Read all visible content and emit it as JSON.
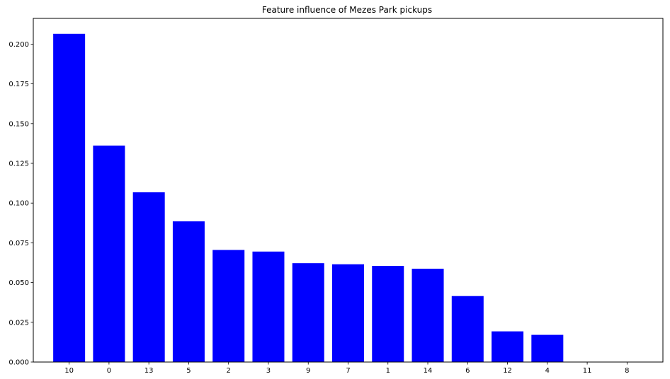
{
  "chart_data": {
    "type": "bar",
    "title": "Feature influence of Mezes Park pickups",
    "xlabel": "",
    "ylabel": "",
    "categories": [
      "10",
      "0",
      "13",
      "5",
      "2",
      "3",
      "9",
      "7",
      "1",
      "14",
      "6",
      "12",
      "4",
      "11",
      "8"
    ],
    "values": [
      0.2065,
      0.1362,
      0.1068,
      0.0885,
      0.0705,
      0.0695,
      0.0622,
      0.0615,
      0.0605,
      0.0587,
      0.0415,
      0.0193,
      0.0171,
      0.0,
      0.0
    ],
    "ylim": [
      0,
      0.2162
    ],
    "yticks": [
      "0.000",
      "0.025",
      "0.050",
      "0.075",
      "0.100",
      "0.125",
      "0.150",
      "0.175",
      "0.200"
    ],
    "bar_color": "#0000ff",
    "grid": false,
    "legend": "none"
  }
}
